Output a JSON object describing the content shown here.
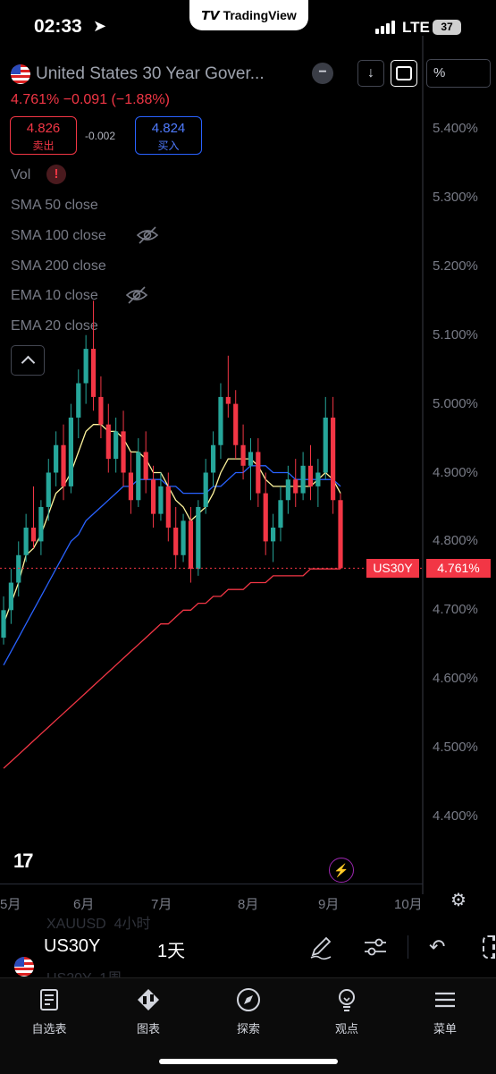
{
  "status_bar": {
    "time": "02:33",
    "network": "LTE",
    "battery": "37"
  },
  "brand_pill": {
    "label": "TradingView"
  },
  "header": {
    "title": "United States 30 Year Gover...",
    "price_change": "4.761%  −0.091 (−1.88%)",
    "sell": {
      "price": "4.826",
      "label": "卖出"
    },
    "buy": {
      "price": "4.824",
      "label": "买入"
    },
    "spread": "-0.002",
    "scale_button": "%"
  },
  "indicators": [
    {
      "label": "Vol"
    },
    {
      "label": "SMA 50 close"
    },
    {
      "label": "SMA 100 close"
    },
    {
      "label": "SMA 200 close"
    },
    {
      "label": "EMA 10 close"
    },
    {
      "label": "EMA 20 close"
    }
  ],
  "price_axis": [
    "5.400%",
    "5.300%",
    "5.200%",
    "5.100%",
    "5.000%",
    "4.900%",
    "4.800%",
    "4.700%",
    "4.600%",
    "4.500%",
    "4.400%"
  ],
  "time_axis": [
    "5月",
    "6月",
    "7月",
    "8月",
    "9月",
    "10月"
  ],
  "last_price": {
    "symbol": "US30Y",
    "value": "4.761%"
  },
  "toolbar": {
    "symbol": "US30Y",
    "interval": "1天",
    "ghost_rows": [
      "XAUUSD  4小时",
      "US20Y  1周"
    ]
  },
  "tabs": [
    {
      "label": "自选表",
      "icon": "watchlist-icon"
    },
    {
      "label": "图表",
      "icon": "chart-icon"
    },
    {
      "label": "探索",
      "icon": "compass-icon"
    },
    {
      "label": "观点",
      "icon": "lightbulb-icon"
    },
    {
      "label": "菜单",
      "icon": "menu-icon"
    }
  ],
  "colors": {
    "up": "#26a69a",
    "down": "#f23645",
    "ema10": "#fff59d",
    "sma50": "#2962ff",
    "sma200": "#f23645"
  },
  "chart_data": {
    "type": "candlestick",
    "y_unit": "%",
    "ylim": [
      4.35,
      5.44
    ],
    "x_ticks": [
      "5月",
      "6月",
      "7月",
      "8月",
      "9月",
      "10月"
    ],
    "candles_ohlc": [
      [
        4.66,
        4.72,
        4.65,
        4.7
      ],
      [
        4.7,
        4.76,
        4.68,
        4.74
      ],
      [
        4.74,
        4.8,
        4.72,
        4.78
      ],
      [
        4.78,
        4.84,
        4.77,
        4.82
      ],
      [
        4.82,
        4.88,
        4.79,
        4.8
      ],
      [
        4.8,
        4.86,
        4.78,
        4.85
      ],
      [
        4.85,
        4.92,
        4.83,
        4.9
      ],
      [
        4.9,
        4.96,
        4.88,
        4.94
      ],
      [
        4.94,
        4.97,
        4.86,
        4.88
      ],
      [
        4.88,
        5.0,
        4.87,
        4.98
      ],
      [
        4.98,
        5.05,
        4.95,
        5.03
      ],
      [
        5.03,
        5.1,
        5.0,
        5.08
      ],
      [
        5.08,
        5.15,
        4.99,
        5.01
      ],
      [
        5.01,
        5.04,
        4.95,
        4.97
      ],
      [
        4.97,
        5.0,
        4.9,
        4.92
      ],
      [
        4.92,
        4.98,
        4.9,
        4.96
      ],
      [
        4.96,
        4.99,
        4.88,
        4.9
      ],
      [
        4.9,
        4.93,
        4.84,
        4.86
      ],
      [
        4.86,
        4.95,
        4.85,
        4.93
      ],
      [
        4.93,
        4.96,
        4.87,
        4.89
      ],
      [
        4.89,
        4.91,
        4.82,
        4.84
      ],
      [
        4.84,
        4.9,
        4.83,
        4.88
      ],
      [
        4.88,
        4.9,
        4.8,
        4.82
      ],
      [
        4.82,
        4.85,
        4.76,
        4.78
      ],
      [
        4.78,
        4.84,
        4.77,
        4.83
      ],
      [
        4.83,
        4.85,
        4.74,
        4.76
      ],
      [
        4.76,
        4.86,
        4.75,
        4.85
      ],
      [
        4.85,
        4.92,
        4.84,
        4.9
      ],
      [
        4.9,
        4.96,
        4.88,
        4.94
      ],
      [
        4.94,
        5.03,
        4.92,
        5.01
      ],
      [
        5.01,
        5.07,
        4.98,
        5.0
      ],
      [
        5.0,
        5.02,
        4.92,
        4.94
      ],
      [
        4.94,
        4.97,
        4.89,
        4.91
      ],
      [
        4.91,
        4.95,
        4.86,
        4.93
      ],
      [
        4.93,
        4.95,
        4.85,
        4.87
      ],
      [
        4.87,
        4.9,
        4.78,
        4.8
      ],
      [
        4.8,
        4.84,
        4.77,
        4.82
      ],
      [
        4.82,
        4.88,
        4.8,
        4.86
      ],
      [
        4.86,
        4.91,
        4.84,
        4.89
      ],
      [
        4.89,
        4.92,
        4.85,
        4.87
      ],
      [
        4.87,
        4.93,
        4.86,
        4.91
      ],
      [
        4.91,
        4.94,
        4.86,
        4.88
      ],
      [
        4.88,
        4.92,
        4.85,
        4.9
      ],
      [
        4.9,
        5.01,
        4.89,
        4.98
      ],
      [
        4.98,
        5.01,
        4.84,
        4.86
      ],
      [
        4.86,
        4.87,
        4.76,
        4.761
      ]
    ],
    "ema10": [
      4.68,
      4.71,
      4.74,
      4.78,
      4.79,
      4.81,
      4.84,
      4.87,
      4.88,
      4.9,
      4.93,
      4.96,
      4.97,
      4.97,
      4.96,
      4.96,
      4.95,
      4.93,
      4.93,
      4.92,
      4.9,
      4.9,
      4.88,
      4.86,
      4.85,
      4.83,
      4.84,
      4.85,
      4.87,
      4.9,
      4.92,
      4.92,
      4.92,
      4.92,
      4.91,
      4.89,
      4.88,
      4.88,
      4.88,
      4.88,
      4.88,
      4.88,
      4.89,
      4.9,
      4.89,
      4.87
    ],
    "sma50": [
      4.62,
      4.64,
      4.66,
      4.68,
      4.7,
      4.72,
      4.74,
      4.76,
      4.78,
      4.8,
      4.81,
      4.83,
      4.84,
      4.85,
      4.86,
      4.87,
      4.88,
      4.88,
      4.89,
      4.89,
      4.89,
      4.89,
      4.88,
      4.88,
      4.87,
      4.87,
      4.87,
      4.87,
      4.88,
      4.88,
      4.89,
      4.9,
      4.9,
      4.91,
      4.91,
      4.91,
      4.9,
      4.9,
      4.9,
      4.89,
      4.89,
      4.89,
      4.89,
      4.89,
      4.89,
      4.88
    ],
    "sma200": [
      4.47,
      4.48,
      4.49,
      4.5,
      4.51,
      4.52,
      4.53,
      4.54,
      4.55,
      4.56,
      4.57,
      4.58,
      4.59,
      4.6,
      4.61,
      4.62,
      4.63,
      4.64,
      4.65,
      4.66,
      4.67,
      4.68,
      4.68,
      4.69,
      4.7,
      4.7,
      4.71,
      4.71,
      4.72,
      4.72,
      4.73,
      4.73,
      4.73,
      4.74,
      4.74,
      4.74,
      4.75,
      4.75,
      4.75,
      4.75,
      4.75,
      4.76,
      4.76,
      4.76,
      4.76,
      4.76
    ]
  }
}
